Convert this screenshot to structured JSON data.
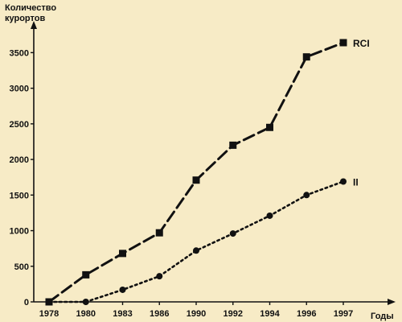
{
  "chart_data": {
    "type": "line",
    "title": "",
    "ylabel": "Количество курортов",
    "ylabel_lines": [
      "Количество",
      "курортов"
    ],
    "xlabel": "Годы",
    "categories": [
      "1978",
      "1980",
      "1983",
      "1986",
      "1990",
      "1992",
      "1994",
      "1996",
      "1997"
    ],
    "ylim": [
      0,
      3900
    ],
    "yticks": [
      0,
      500,
      1000,
      1500,
      2000,
      2500,
      3000,
      3500
    ],
    "grid": false,
    "series": [
      {
        "name": "RCI",
        "style": "dashed",
        "marker": "square",
        "x": [
          1978,
          1980,
          1983,
          1986,
          1990,
          1992,
          1994,
          1996,
          1997
        ],
        "values": [
          0,
          380,
          680,
          970,
          1710,
          2200,
          2450,
          3440,
          3640
        ]
      },
      {
        "name": "II",
        "style": "dotted",
        "marker": "circle",
        "x": [
          1978,
          1980,
          1983,
          1986,
          1990,
          1992,
          1994,
          1996,
          1997
        ],
        "values": [
          0,
          0,
          170,
          360,
          720,
          960,
          1210,
          1500,
          1690
        ]
      }
    ]
  },
  "colors": {
    "background": "#f7ebc6",
    "ink": "#111111"
  }
}
